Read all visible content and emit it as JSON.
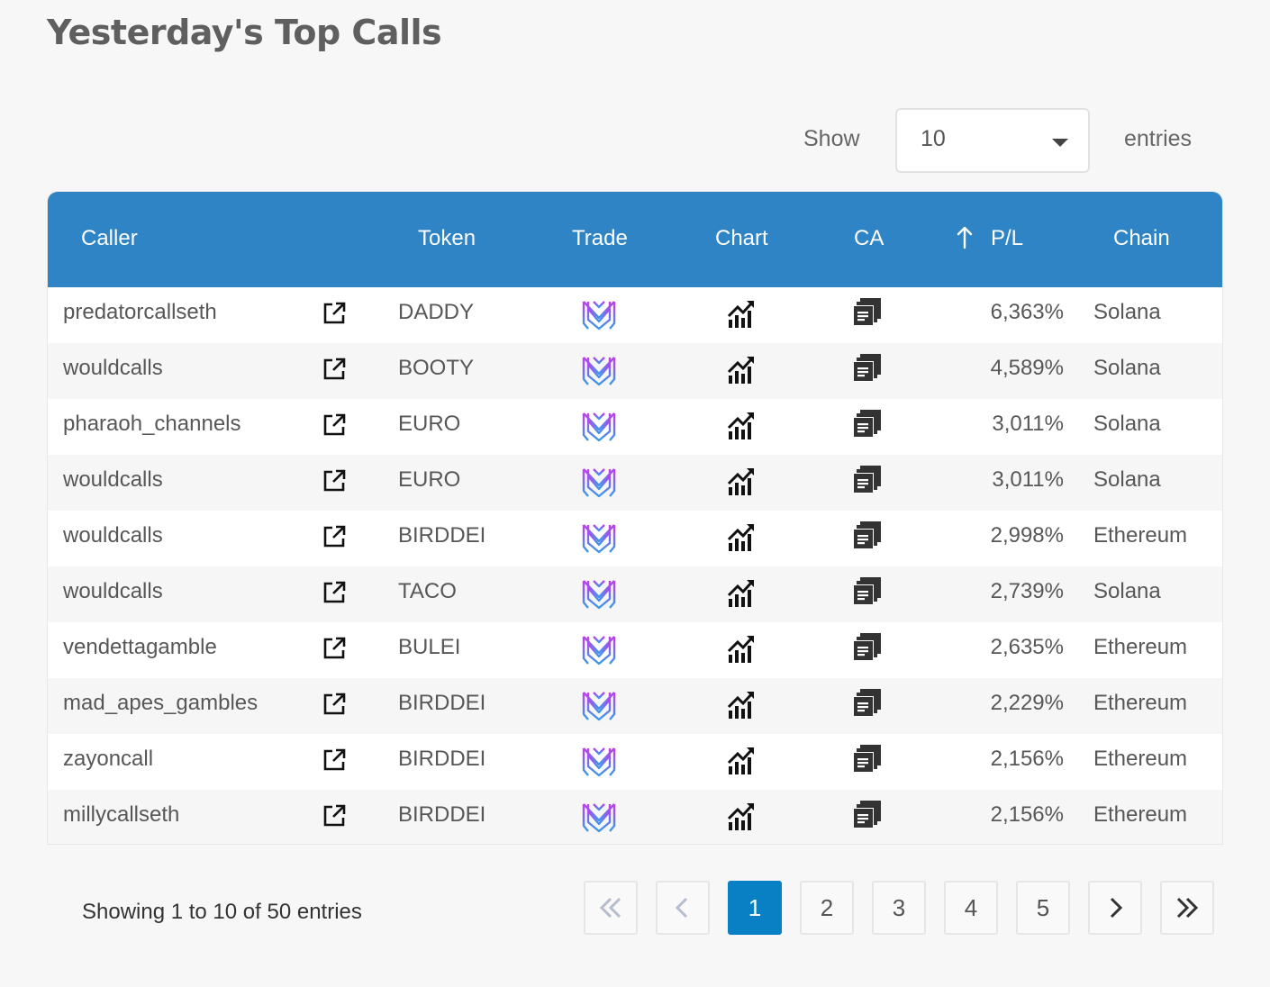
{
  "page": {
    "title": "Yesterday's Top Calls"
  },
  "length_control": {
    "show_label": "Show",
    "selected": "10",
    "entries_label": "entries"
  },
  "table": {
    "headers": {
      "caller": "Caller",
      "token": "Token",
      "trade": "Trade",
      "chart": "Chart",
      "ca": "CA",
      "pl": "P/L",
      "chain": "Chain"
    },
    "rows": [
      {
        "caller": "predatorcallseth",
        "token": "DADDY",
        "pl": "6,363%",
        "chain": "Solana"
      },
      {
        "caller": "wouldcalls",
        "token": "BOOTY",
        "pl": "4,589%",
        "chain": "Solana"
      },
      {
        "caller": "pharaoh_channels",
        "token": "EURO",
        "pl": "3,011%",
        "chain": "Solana"
      },
      {
        "caller": "wouldcalls",
        "token": "EURO",
        "pl": "3,011%",
        "chain": "Solana"
      },
      {
        "caller": "wouldcalls",
        "token": "BIRDDEI",
        "pl": "2,998%",
        "chain": "Ethereum"
      },
      {
        "caller": "wouldcalls",
        "token": "TACO",
        "pl": "2,739%",
        "chain": "Solana"
      },
      {
        "caller": "vendettagamble",
        "token": "BULEI",
        "pl": "2,635%",
        "chain": "Ethereum"
      },
      {
        "caller": "mad_apes_gambles",
        "token": "BIRDDEI",
        "pl": "2,229%",
        "chain": "Ethereum"
      },
      {
        "caller": "zayoncall",
        "token": "BIRDDEI",
        "pl": "2,156%",
        "chain": "Ethereum"
      },
      {
        "caller": "millycallseth",
        "token": "BIRDDEI",
        "pl": "2,156%",
        "chain": "Ethereum"
      }
    ],
    "sort": {
      "column": "pl",
      "direction": "up"
    }
  },
  "footer": {
    "info": "Showing 1 to 10 of 50 entries",
    "pagination": {
      "pages": [
        "1",
        "2",
        "3",
        "4",
        "5"
      ],
      "current": "1",
      "first_disabled": true,
      "prev_disabled": true
    }
  },
  "icons": {
    "row_link": "external-link-icon",
    "trade": "trade-logo-icon",
    "chart": "chart-icon",
    "ca": "copy-icon",
    "sort": "sort-up-arrow-icon"
  },
  "colors": {
    "header_bg": "#2e84c4",
    "active_page": "#0a80c4",
    "trade_logo_top": "#c23cf0",
    "trade_logo_bottom": "#3a9ae8"
  }
}
